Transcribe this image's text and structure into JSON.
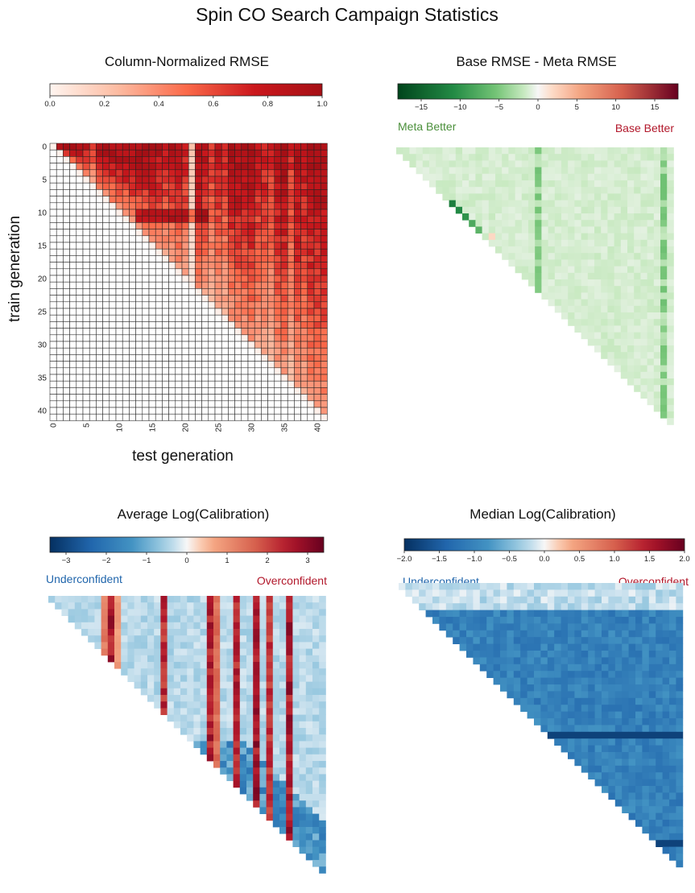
{
  "figure": {
    "title": "Spin CO Search Campaign Statistics"
  },
  "colors": {
    "reds_low": "#fff5f0",
    "reds_high": "#a50f15",
    "green_dark": "#00441b",
    "red_dark": "#67001f",
    "blue_dark": "#053061",
    "meta_better_label": "#4a8f3a",
    "base_better_label": "#b2182b",
    "underconfident_label": "#2166ac",
    "overconfident_label": "#b2182b"
  },
  "chart_data": [
    {
      "type": "heatmap",
      "title": "Column-Normalized RMSE",
      "colormap": "Reds",
      "colorbar": {
        "range": [
          0,
          1
        ],
        "ticks": [
          0.0,
          0.2,
          0.4,
          0.6,
          0.8,
          1.0
        ],
        "tick_labels": [
          "0.0",
          "0.2",
          "0.4",
          "0.6",
          "0.8",
          "1.0"
        ],
        "orientation": "horizontal",
        "placement": "top"
      },
      "xlabel": "test generation",
      "ylabel": "train generation",
      "grid_size": 42,
      "mask": "lower-triangle (test generation < train generation)",
      "grid": true,
      "xticks": [
        0,
        5,
        10,
        15,
        20,
        25,
        30,
        35,
        40
      ],
      "xtick_labels": [
        "0",
        "5",
        "10",
        "15",
        "20",
        "25",
        "30",
        "35",
        "40"
      ],
      "yticks": [
        0,
        5,
        10,
        15,
        20,
        25,
        30,
        35,
        40
      ],
      "ytick_labels": [
        "0",
        "5",
        "10",
        "15",
        "20",
        "25",
        "30",
        "35",
        "40"
      ],
      "column_peak_values": [
        0.6,
        0.9,
        1,
        1,
        0.95,
        0.85,
        0.7,
        0.95,
        1,
        1,
        1,
        1,
        1,
        1,
        1,
        1,
        0.9,
        0.85,
        0.9,
        0.95,
        0.8,
        0.2,
        1,
        0.9,
        0.7,
        0.85,
        0.75,
        0.95,
        1,
        0.95,
        1,
        0.85,
        0.8,
        0.7,
        0.95,
        1,
        0.7,
        0.95,
        0.85,
        1,
        1,
        1
      ],
      "row_focus": {
        "rows": [
          10,
          11
        ],
        "boost": 0.35
      }
    },
    {
      "type": "heatmap",
      "title": "Base RMSE - Meta RMSE",
      "colormap": "Greens-to-Reds diverging",
      "colorbar": {
        "range": [
          -18,
          18
        ],
        "ticks": [
          -15,
          -10,
          -5,
          0,
          5,
          10,
          15
        ],
        "tick_labels": [
          "−15",
          "−10",
          "−5",
          "0",
          "5",
          "10",
          "15"
        ],
        "orientation": "horizontal",
        "placement": "top"
      },
      "annotations": {
        "left": "Meta Better",
        "right": "Base Better"
      },
      "grid_size": 42,
      "mask": "lower-triangle",
      "typical_value": -1.2,
      "hot_cells": [
        {
          "row": 8,
          "col": 8,
          "value": -12
        },
        {
          "row": 9,
          "col": 8,
          "value": -14
        },
        {
          "row": 9,
          "col": 9,
          "value": -11
        },
        {
          "row": 10,
          "col": 9,
          "value": -16
        },
        {
          "row": 10,
          "col": 10,
          "value": -10
        },
        {
          "row": 11,
          "col": 10,
          "value": -13
        },
        {
          "row": 11,
          "col": 11,
          "value": -8
        },
        {
          "row": 12,
          "col": 12,
          "value": -7
        },
        {
          "row": 13,
          "col": 14,
          "value": 2
        }
      ],
      "column_offsets": [
        {
          "col": 21,
          "value": -4
        },
        {
          "col": 40,
          "value": -4
        }
      ]
    },
    {
      "type": "heatmap",
      "title": "Average Log(Calibration)",
      "colormap": "RdBu_r",
      "colorbar": {
        "range": [
          -3.4,
          3.4
        ],
        "ticks": [
          -3,
          -2,
          -1,
          0,
          1,
          2,
          3
        ],
        "tick_labels": [
          "−3",
          "−2",
          "−1",
          "0",
          "1",
          "2",
          "3"
        ],
        "orientation": "horizontal",
        "placement": "top"
      },
      "annotations": {
        "left": "Underconfident",
        "right": "Overconfident"
      },
      "grid_size": 42,
      "mask": "lower-triangle",
      "typical_value": -0.4,
      "overconfident_columns": [
        {
          "col": 8,
          "value": 1.4
        },
        {
          "col": 9,
          "value": 2.8
        },
        {
          "col": 10,
          "value": 0.9
        },
        {
          "col": 17,
          "value": 2.5
        },
        {
          "col": 24,
          "value": 2.7
        },
        {
          "col": 25,
          "value": 1.6
        },
        {
          "col": 28,
          "value": 2.6
        },
        {
          "col": 31,
          "value": 2.9
        },
        {
          "col": 33,
          "value": 2.4
        },
        {
          "col": 36,
          "value": 2.8
        }
      ],
      "underconfident_band": {
        "rows": [
          22,
          41
        ],
        "value": -1.6
      }
    },
    {
      "type": "heatmap",
      "title": "Median Log(Calibration)",
      "colormap": "RdBu_r",
      "colorbar": {
        "range": [
          -2,
          2
        ],
        "ticks": [
          -2,
          -1.5,
          -1,
          -0.5,
          0,
          0.5,
          1,
          1.5,
          2
        ],
        "tick_labels": [
          "−2.0",
          "−1.5",
          "−1.0",
          "−0.5",
          "0.0",
          "0.5",
          "1.0",
          "1.5",
          "2.0"
        ],
        "orientation": "horizontal",
        "placement": "top"
      },
      "annotations": {
        "left": "Underconfident",
        "right": "Overconfident"
      },
      "grid_size": 42,
      "mask": "lower-triangle",
      "typical_value": -1.0,
      "light_rows": [
        {
          "rows": [
            0,
            3
          ],
          "value": -0.2
        }
      ],
      "dark_rows": [
        {
          "row": 22,
          "value": -1.8
        },
        {
          "row": 38,
          "value": -1.8
        }
      ]
    }
  ]
}
